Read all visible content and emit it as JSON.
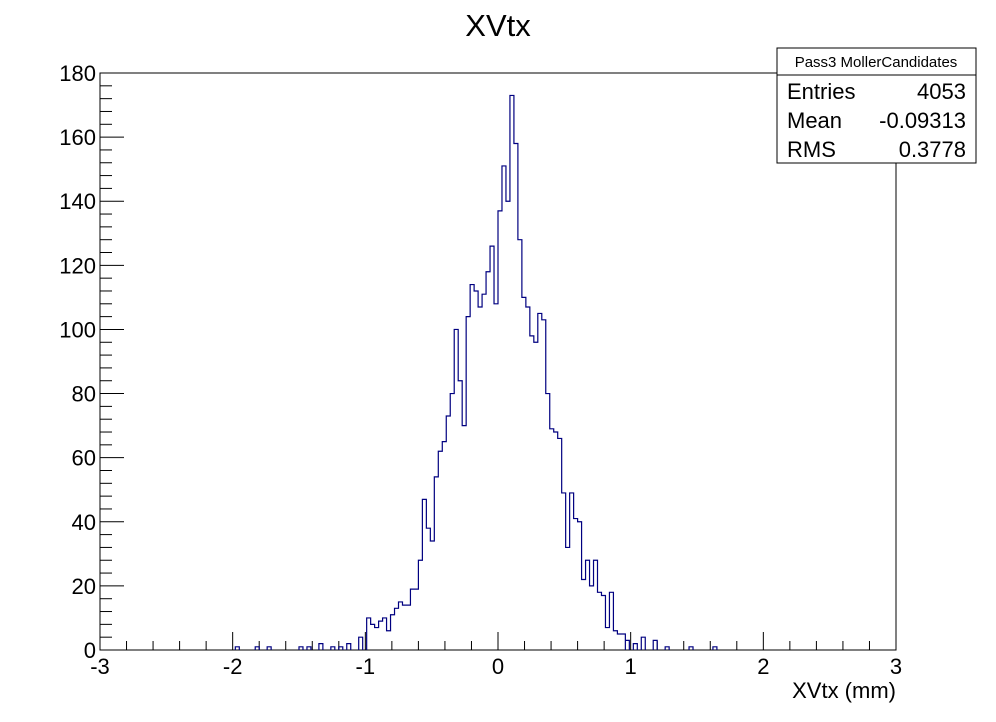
{
  "chart_data": {
    "type": "histogram",
    "title": "XVtx",
    "xlabel": "XVtx (mm)",
    "ylabel": "",
    "xlim": [
      -3,
      3
    ],
    "ylim": [
      0,
      180
    ],
    "x_ticks": [
      "-3",
      "-2",
      "-1",
      "0",
      "1",
      "2",
      "3"
    ],
    "y_ticks": [
      "0",
      "20",
      "40",
      "60",
      "80",
      "100",
      "120",
      "140",
      "160",
      "180"
    ],
    "line_color": "#000080",
    "bin_width": 0.03,
    "bin_start": -0.99,
    "values": [
      10,
      8,
      7,
      9,
      10,
      6,
      11,
      13,
      15,
      14,
      14,
      19,
      19,
      28,
      47,
      38,
      34,
      54,
      62,
      65,
      73,
      80,
      100,
      84,
      70,
      104,
      114,
      112,
      107,
      111,
      118,
      126,
      108,
      137,
      151,
      140,
      173,
      158,
      128,
      110,
      107,
      98,
      96,
      105,
      103,
      80,
      69,
      68,
      66,
      49,
      32,
      49,
      41,
      40,
      22,
      28,
      20,
      28,
      18,
      17,
      7,
      18,
      6,
      5,
      5
    ],
    "low_tail": [
      {
        "x": -1.98,
        "v": 1
      },
      {
        "x": -1.83,
        "v": 1
      },
      {
        "x": -1.74,
        "v": 1
      },
      {
        "x": -1.5,
        "v": 1
      },
      {
        "x": -1.44,
        "v": 1
      },
      {
        "x": -1.35,
        "v": 2
      },
      {
        "x": -1.26,
        "v": 1
      },
      {
        "x": -1.2,
        "v": 1
      },
      {
        "x": -1.14,
        "v": 2
      },
      {
        "x": -1.05,
        "v": 4
      }
    ],
    "high_tail": [
      {
        "x": 0.96,
        "v": 3
      },
      {
        "x": 1.02,
        "v": 2
      },
      {
        "x": 1.08,
        "v": 4
      },
      {
        "x": 1.17,
        "v": 3
      },
      {
        "x": 1.26,
        "v": 1
      },
      {
        "x": 1.44,
        "v": 1
      },
      {
        "x": 1.62,
        "v": 1
      }
    ]
  },
  "stats": {
    "name": "Pass3 MollerCandidates",
    "rows": [
      {
        "label": "Entries",
        "value": "4053"
      },
      {
        "label": "Mean",
        "value": "-0.09313"
      },
      {
        "label": "RMS",
        "value": "0.3778"
      }
    ]
  }
}
